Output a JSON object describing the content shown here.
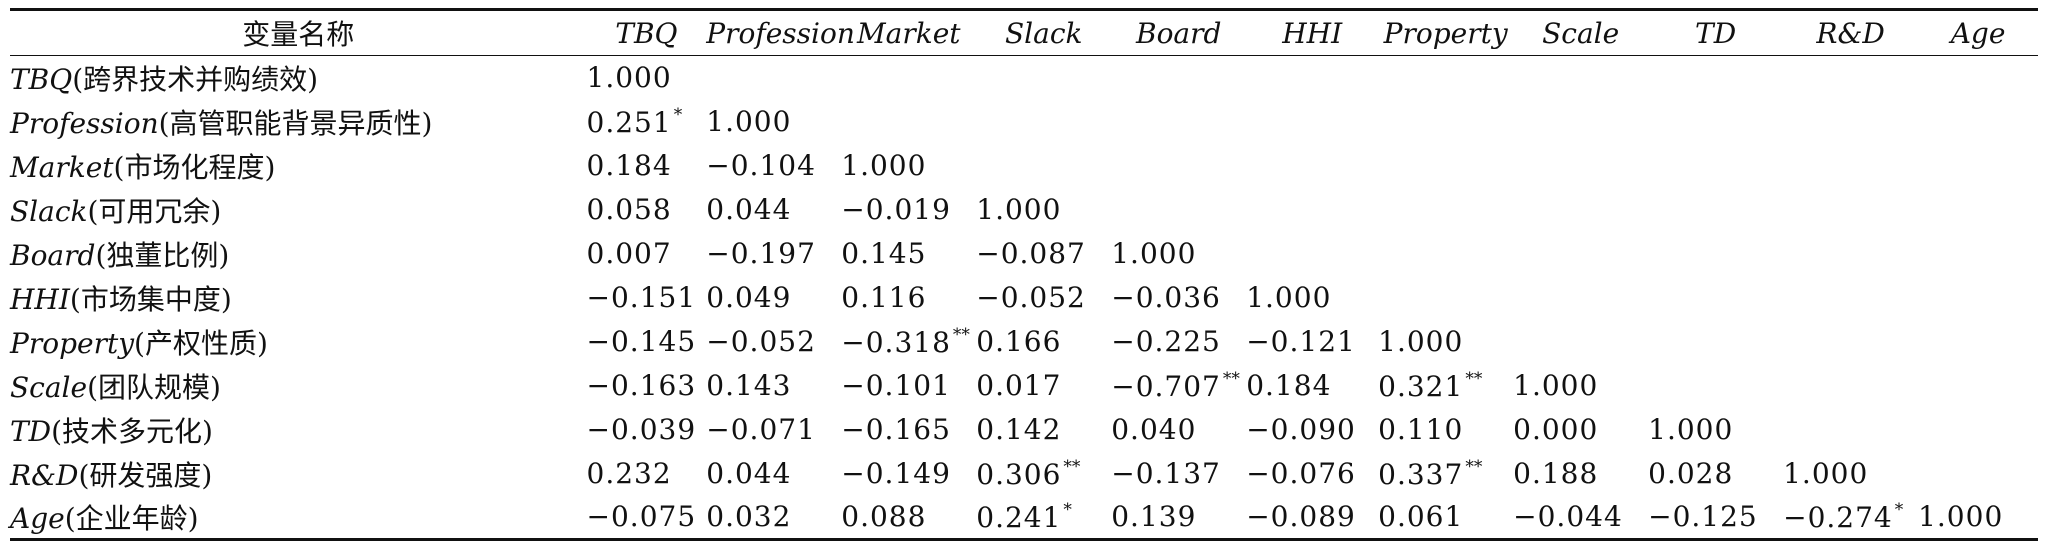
{
  "table": {
    "header_first": "变量名称",
    "columns": [
      "TBQ",
      "Profession",
      "Market",
      "Slack",
      "Board",
      "HHI",
      "Property",
      "Scale",
      "TD",
      "R&D",
      "Age"
    ],
    "rows": [
      {
        "abbr": "TBQ",
        "name": "(跨界技术并购绩效)",
        "cells": [
          {
            "v": "1.000",
            "s": ""
          }
        ]
      },
      {
        "abbr": "Profession",
        "name": "(高管职能背景异质性)",
        "cells": [
          {
            "v": "0.251",
            "s": "*"
          },
          {
            "v": "1.000",
            "s": ""
          }
        ]
      },
      {
        "abbr": "Market",
        "name": "(市场化程度)",
        "cells": [
          {
            "v": "0.184",
            "s": ""
          },
          {
            "v": "−0.104",
            "s": ""
          },
          {
            "v": "1.000",
            "s": ""
          }
        ]
      },
      {
        "abbr": "Slack",
        "name": "(可用冗余)",
        "cells": [
          {
            "v": "0.058",
            "s": ""
          },
          {
            "v": "0.044",
            "s": ""
          },
          {
            "v": "−0.019",
            "s": ""
          },
          {
            "v": "1.000",
            "s": ""
          }
        ]
      },
      {
        "abbr": "Board",
        "name": "(独董比例)",
        "cells": [
          {
            "v": "0.007",
            "s": ""
          },
          {
            "v": "−0.197",
            "s": ""
          },
          {
            "v": "0.145",
            "s": ""
          },
          {
            "v": "−0.087",
            "s": ""
          },
          {
            "v": "1.000",
            "s": ""
          }
        ]
      },
      {
        "abbr": "HHI",
        "name": "(市场集中度)",
        "cells": [
          {
            "v": "−0.151",
            "s": ""
          },
          {
            "v": "0.049",
            "s": ""
          },
          {
            "v": "0.116",
            "s": ""
          },
          {
            "v": "−0.052",
            "s": ""
          },
          {
            "v": "−0.036",
            "s": ""
          },
          {
            "v": "1.000",
            "s": ""
          }
        ]
      },
      {
        "abbr": "Property",
        "name": "(产权性质)",
        "cells": [
          {
            "v": "−0.145",
            "s": ""
          },
          {
            "v": "−0.052",
            "s": ""
          },
          {
            "v": "−0.318",
            "s": "**"
          },
          {
            "v": "0.166",
            "s": ""
          },
          {
            "v": "−0.225",
            "s": ""
          },
          {
            "v": "−0.121",
            "s": ""
          },
          {
            "v": "1.000",
            "s": ""
          }
        ]
      },
      {
        "abbr": "Scale",
        "name": "(团队规模)",
        "cells": [
          {
            "v": "−0.163",
            "s": ""
          },
          {
            "v": "0.143",
            "s": ""
          },
          {
            "v": "−0.101",
            "s": ""
          },
          {
            "v": "0.017",
            "s": ""
          },
          {
            "v": "−0.707",
            "s": "**"
          },
          {
            "v": "0.184",
            "s": ""
          },
          {
            "v": "0.321",
            "s": "**"
          },
          {
            "v": "1.000",
            "s": ""
          }
        ]
      },
      {
        "abbr": "TD",
        "name": "(技术多元化)",
        "cells": [
          {
            "v": "−0.039",
            "s": ""
          },
          {
            "v": "−0.071",
            "s": ""
          },
          {
            "v": "−0.165",
            "s": ""
          },
          {
            "v": "0.142",
            "s": ""
          },
          {
            "v": "0.040",
            "s": ""
          },
          {
            "v": "−0.090",
            "s": ""
          },
          {
            "v": "0.110",
            "s": ""
          },
          {
            "v": "0.000",
            "s": ""
          },
          {
            "v": "1.000",
            "s": ""
          }
        ]
      },
      {
        "abbr": "R&D",
        "name": "(研发强度)",
        "cells": [
          {
            "v": "0.232",
            "s": ""
          },
          {
            "v": "0.044",
            "s": ""
          },
          {
            "v": "−0.149",
            "s": ""
          },
          {
            "v": "0.306",
            "s": "**"
          },
          {
            "v": "−0.137",
            "s": ""
          },
          {
            "v": "−0.076",
            "s": ""
          },
          {
            "v": "0.337",
            "s": "**"
          },
          {
            "v": "0.188",
            "s": ""
          },
          {
            "v": "0.028",
            "s": ""
          },
          {
            "v": "1.000",
            "s": ""
          }
        ]
      },
      {
        "abbr": "Age",
        "name": "(企业年龄)",
        "cells": [
          {
            "v": "−0.075",
            "s": ""
          },
          {
            "v": "0.032",
            "s": ""
          },
          {
            "v": "0.088",
            "s": ""
          },
          {
            "v": "0.241",
            "s": "*"
          },
          {
            "v": "0.139",
            "s": ""
          },
          {
            "v": "−0.089",
            "s": ""
          },
          {
            "v": "0.061",
            "s": ""
          },
          {
            "v": "−0.044",
            "s": ""
          },
          {
            "v": "−0.125",
            "s": ""
          },
          {
            "v": "−0.274",
            "s": "*"
          },
          {
            "v": "1.000",
            "s": ""
          }
        ]
      }
    ]
  }
}
